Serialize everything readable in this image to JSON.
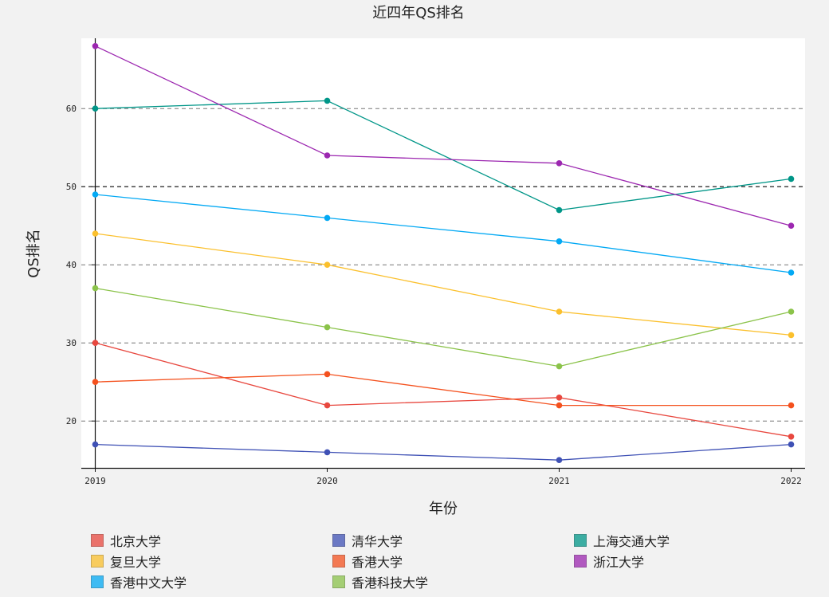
{
  "chart_data": {
    "type": "line",
    "title": "近四年QS排名",
    "xlabel": "年份",
    "ylabel": "QS排名",
    "categories": [
      "2019",
      "2020",
      "2021",
      "2022"
    ],
    "ylim": [
      14,
      69
    ],
    "yticks": [
      20,
      30,
      40,
      50,
      60
    ],
    "grid": "horizontal-dashed",
    "legend_position": "bottom",
    "series": [
      {
        "name": "北京大学",
        "color": "#e8483f",
        "values": [
          30,
          22,
          23,
          18
        ]
      },
      {
        "name": "清华大学",
        "color": "#3f51b5",
        "values": [
          17,
          16,
          15,
          17
        ]
      },
      {
        "name": "上海交通大学",
        "color": "#009688",
        "values": [
          60,
          61,
          47,
          51
        ]
      },
      {
        "name": "复旦大学",
        "color": "#fbc02d",
        "values": [
          44,
          40,
          34,
          31
        ]
      },
      {
        "name": "香港大学",
        "color": "#f4511e",
        "values": [
          25,
          26,
          22,
          22
        ]
      },
      {
        "name": "浙江大学",
        "color": "#9c27b0",
        "values": [
          68,
          54,
          53,
          45
        ]
      },
      {
        "name": "香港中文大学",
        "color": "#03a9f4",
        "values": [
          49,
          46,
          43,
          39
        ]
      },
      {
        "name": "香港科技大学",
        "color": "#8bc34a",
        "values": [
          37,
          32,
          27,
          34
        ]
      }
    ]
  }
}
